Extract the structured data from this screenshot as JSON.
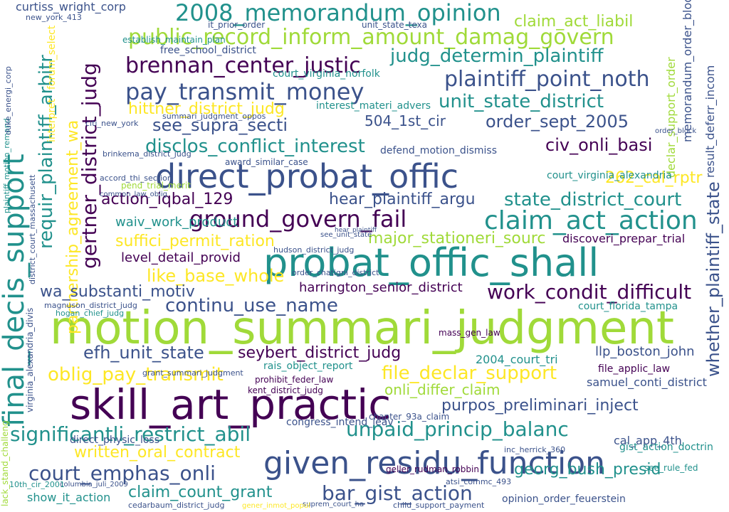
{
  "palette": {
    "dark_purple": "#440154",
    "indigo": "#3b528b",
    "teal": "#21918c",
    "green": "#5ec962",
    "lime": "#a0da39",
    "yellow": "#fde725"
  },
  "words": [
    "motion_summari_judgment",
    "skill_art_practic",
    "probat_offic_shall",
    "direct_probat_offic",
    "given_residu_function",
    "final_decis_support",
    "2008_memorandum_opinion",
    "public_record_inform_amount_damag_govern",
    "brennan_center_justic",
    "pay_transmit_money",
    "plaintiff_point_noth",
    "claim_act_action",
    "ground_govern_fail",
    "significantli_restrict_abil",
    "unpaid_princip_balanc",
    "court_emphas_onli",
    "bar_gist_action",
    "oblig_pay_transmit",
    "file_declar_support",
    "efh_unit_state",
    "seybert_district_judg",
    "continu_use_name",
    "work_condit_difficult",
    "judg_determin_plaintiff",
    "unit_state_district",
    "order_sept_2005",
    "civ_onli_basi",
    "disclos_conflict_interest",
    "see_supra_secti",
    "hittner_district_judg",
    "state_district_court",
    "partnership_agreement_wa",
    "gertner_district_judg",
    "requir_plaintiff_arbitr",
    "whether_plaintiff_state",
    "like_base_whole",
    "suffici_permit_ration",
    "action_iqbal_129",
    "wa_substanti_motiv",
    "written_oral_contract",
    "claim_count_grant",
    "georg_bush_presid",
    "purpos_preliminari_inject",
    "onli_differ_claim",
    "hear_plaintiff_argu",
    "major_stationeri_sourc",
    "harrington_senior_district",
    "court_virginia_norfolk",
    "claim_act_liabil",
    "curtiss_wright_corp",
    "llp_boston_john",
    "waiv_work_product",
    "level_detail_provid",
    "504_1st_cir",
    "262_cal_rptr",
    "memorandum_order_block",
    "result_deferr_incom",
    "declar_support_order",
    "court_virginia_alexandria",
    "show_it_action",
    "samuel_conti_district",
    "cal_app_4th",
    "court_florida_tampa",
    "discoveri_prepar_trial",
    "2004_court_tri",
    "file_applic_law",
    "see_rule_fed",
    "gist_action_doctrin",
    "geller_rudman_robbin",
    "interest_materi_advers",
    "defend_motion_dismiss",
    "free_school_district",
    "establish_maintain_plan",
    "kent_district_judg",
    "prohibit_feder_law",
    "rais_object_report",
    "congress_intend_leav",
    "direct_physic_loss",
    "opinion_order_feuerstein",
    "pend_trial_merit",
    "award_similar_case",
    "common_law_oblig",
    "see_unit_state",
    "mass_gen_law",
    "it_prior_order",
    "unit_state_texa",
    "forum_select",
    "interpret",
    "cedarbaum_district_judg",
    "suprem_court_ha",
    "child_support_payment",
    "citi_new_york",
    "chapter_93a_claim",
    "brinkema_district_judg",
    "inc_herrick_360",
    "columbia_juli_2009",
    "hogan_chief_judg",
    "magnuson_district_judg",
    "order_chatigni_district",
    "hudson_district_judg",
    "virginia_alexandria_divis",
    "grant_summari_judgment",
    "new_york_413",
    "accord_thi_section",
    "summari_judgment_oppos",
    "gener_inmot_popul",
    "atsi_commc_493",
    "10th_cir_2001",
    "lack_stand_challeng",
    "plaintiff_motion_remand",
    "duke_energi_corp",
    "district_court_massachusett",
    "hear_plaintiff",
    "order_block"
  ]
}
